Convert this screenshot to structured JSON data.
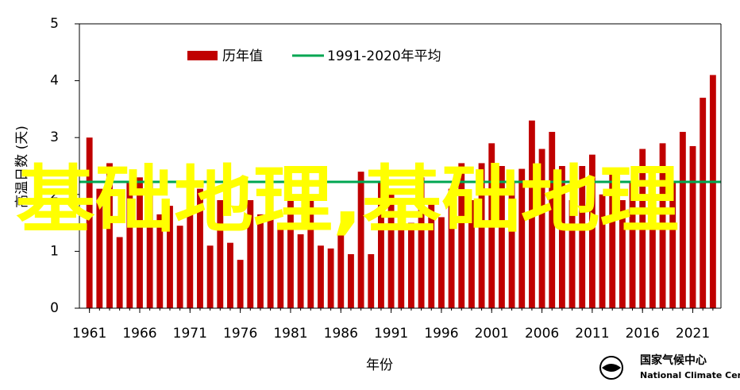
{
  "chart_data": {
    "type": "bar",
    "y_label": "高温日数 (天)",
    "x_label": "年份",
    "x": [
      1961,
      1962,
      1963,
      1964,
      1965,
      1966,
      1967,
      1968,
      1969,
      1970,
      1971,
      1972,
      1973,
      1974,
      1975,
      1976,
      1977,
      1978,
      1979,
      1980,
      1981,
      1982,
      1983,
      1984,
      1985,
      1986,
      1987,
      1988,
      1989,
      1990,
      1991,
      1992,
      1993,
      1994,
      1995,
      1996,
      1997,
      1998,
      1999,
      2000,
      2001,
      2002,
      2003,
      2004,
      2005,
      2006,
      2007,
      2008,
      2009,
      2010,
      2011,
      2012,
      2013,
      2014,
      2015,
      2016,
      2017,
      2018,
      2019,
      2020,
      2021,
      2022,
      2023
    ],
    "series": [
      {
        "name": "历年值",
        "color": "#c00000",
        "values": [
          3.0,
          2.1,
          2.55,
          1.25,
          2.2,
          2.3,
          2.2,
          1.65,
          1.8,
          1.45,
          2.3,
          2.1,
          1.1,
          1.9,
          1.15,
          0.85,
          1.9,
          1.65,
          2.1,
          1.5,
          2.0,
          1.3,
          1.9,
          1.1,
          1.05,
          1.3,
          0.95,
          2.4,
          0.95,
          2.2,
          2.0,
          1.6,
          1.5,
          2.3,
          1.9,
          1.6,
          2.1,
          2.55,
          1.9,
          2.55,
          2.9,
          2.5,
          2.2,
          2.45,
          3.3,
          2.8,
          3.1,
          2.5,
          1.9,
          2.5,
          2.7,
          2.0,
          2.4,
          1.9,
          2.2,
          2.8,
          2.5,
          2.9,
          2.2,
          3.1,
          2.85,
          3.7,
          4.1
        ]
      }
    ],
    "reference_lines": [
      {
        "name": "1991-2020年平均",
        "color": "#00a651",
        "value": 2.22
      }
    ],
    "xlim": [
      1960,
      2023.8
    ],
    "xticks": [
      1961,
      1966,
      1971,
      1976,
      1981,
      1986,
      1991,
      1996,
      2001,
      2006,
      2011,
      2016,
      2021
    ],
    "ylim": [
      0,
      5
    ],
    "yticks": [
      0,
      1,
      2,
      3,
      4,
      5
    ],
    "grid": false,
    "annotation": "基础地理,基础地理",
    "logo": {
      "name": "国家气候中心",
      "name_en": "National Climate Center"
    }
  }
}
